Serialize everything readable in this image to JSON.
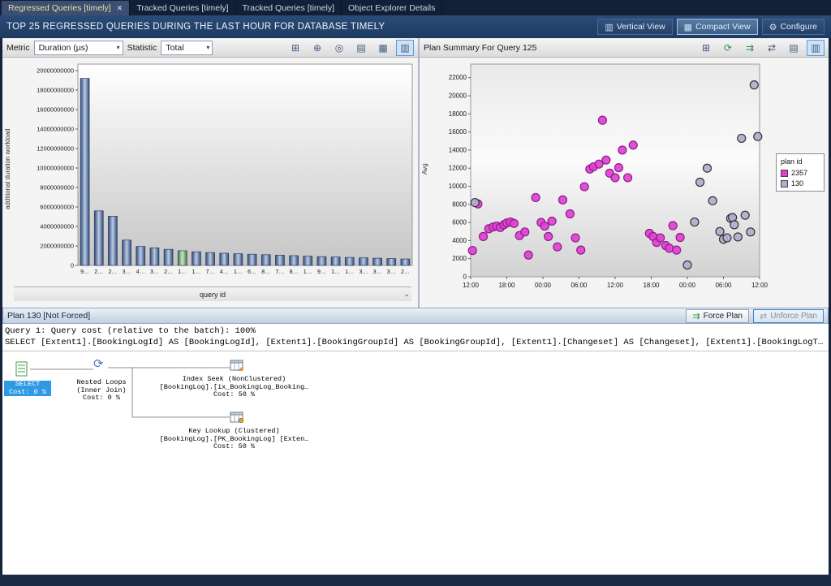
{
  "tabs": [
    {
      "label": "Regressed Queries [timely]",
      "active": true
    },
    {
      "label": "Tracked Queries [timely]",
      "active": false
    },
    {
      "label": "Tracked Queries [timely]",
      "active": false
    },
    {
      "label": "Object Explorer Details",
      "active": false
    }
  ],
  "title_bar": {
    "title": "TOP 25 REGRESSED QUERIES DURING THE LAST HOUR FOR DATABASE TIMELY",
    "vertical_view": "Vertical View",
    "compact_view": "Compact View",
    "configure": "Configure"
  },
  "left_toolbar": {
    "metric_label": "Metric",
    "metric_value": "Duration (µs)",
    "statistic_label": "Statistic",
    "statistic_value": "Total"
  },
  "right_header": {
    "title": "Plan Summary For Query 125"
  },
  "plan_panel": {
    "title": "Plan 130 [Not Forced]",
    "force_plan": "Force Plan",
    "unforce_plan": "Unforce Plan",
    "query_cost_line": "Query 1: Query cost (relative to the batch): 100%",
    "query_text": "SELECT [Extent1].[BookingLogId] AS [BookingLogId], [Extent1].[BookingGroupId] AS [BookingGroupId], [Extent1].[Changeset] AS [Changeset], [Extent1].[BookingLogT…",
    "nodes": {
      "select": {
        "label": "SELECT",
        "cost": "Cost: 0 %"
      },
      "nested_loops": {
        "line1": "Nested Loops",
        "line2": "(Inner Join)",
        "cost": "Cost: 0 %"
      },
      "index_seek": {
        "line1": "Index Seek (NonClustered)",
        "line2": "[BookingLog].[ix_BookingLog_Booking…",
        "cost": "Cost: 50 %"
      },
      "key_lookup": {
        "line1": "Key Lookup (Clustered)",
        "line2": "[BookingLog].[PK_BookingLog] [Exten…",
        "cost": "Cost: 50 %"
      }
    }
  },
  "icons": {
    "close": "✕",
    "dropdown_arrow": "▾",
    "chevron_down": "⌄",
    "vertical_view": "▥",
    "compact_view": "▦",
    "configure": "⚙",
    "force_plan": "⇉",
    "unforce_plan": "⇄",
    "left_toolbar": [
      {
        "name": "grid-view-icon",
        "glyph": "⊞"
      },
      {
        "name": "crosshair-icon",
        "glyph": "⊕"
      },
      {
        "name": "zoom-chart-icon",
        "glyph": "◎"
      },
      {
        "name": "chart-type-column-icon",
        "glyph": "▤"
      },
      {
        "name": "chart-type-grid-icon",
        "glyph": "▦"
      },
      {
        "name": "chart-type-bar-icon",
        "glyph": "▥"
      }
    ],
    "right_toolbar": [
      {
        "name": "grid-view-icon",
        "glyph": "⊞"
      },
      {
        "name": "refresh-icon",
        "glyph": "⟳"
      },
      {
        "name": "force-plan-icon",
        "glyph": "⇉"
      },
      {
        "name": "compare-plans-icon",
        "glyph": "⇄"
      },
      {
        "name": "plan-page-icon",
        "glyph": "▤"
      },
      {
        "name": "chart-view-icon",
        "glyph": "▥"
      }
    ]
  },
  "chart_data": [
    {
      "type": "bar",
      "xlabel": "query id",
      "ylabel": "additional duration workload",
      "ylim": [
        0,
        20000000000
      ],
      "ytick_step": 2000000000,
      "grid": false,
      "categories": [
        "9…",
        "2…",
        "2…",
        "3…",
        "4…",
        "3…",
        "2…",
        "1…",
        "1…",
        "7…",
        "4…",
        "1…",
        "6…",
        "8…",
        "7…",
        "8…",
        "1…",
        "9…",
        "1…",
        "1…",
        "3…",
        "3…",
        "3…",
        "2…"
      ],
      "values": [
        19200000000,
        5600000000,
        5050000000,
        2600000000,
        1950000000,
        1800000000,
        1650000000,
        1500000000,
        1400000000,
        1320000000,
        1250000000,
        1200000000,
        1150000000,
        1100000000,
        1050000000,
        1000000000,
        950000000,
        900000000,
        860000000,
        820000000,
        780000000,
        740000000,
        700000000,
        660000000
      ],
      "highlighted_index": 7,
      "bar_color": "#4a6a9c",
      "highlight_color": "#7aa86e"
    },
    {
      "type": "scatter",
      "ylabel": "Avg",
      "ylim": [
        0,
        23500
      ],
      "ytick_max": 22000,
      "ytick_step": 2000,
      "x_ticks": [
        "12:00",
        "18:00",
        "00:00",
        "06:00",
        "12:00",
        "18:00",
        "00:00",
        "06:00",
        "12:00"
      ],
      "x_range": [
        0,
        8
      ],
      "legend_title": "plan id",
      "legend_position": "right",
      "series": [
        {
          "name": "2357",
          "color": "#df3fd2",
          "stroke": "#8a1f86",
          "points": [
            [
              0.05,
              2900
            ],
            [
              0.2,
              8050
            ],
            [
              0.35,
              4450
            ],
            [
              0.5,
              5300
            ],
            [
              0.62,
              5500
            ],
            [
              0.72,
              5600
            ],
            [
              0.82,
              5450
            ],
            [
              0.92,
              5750
            ],
            [
              1.0,
              5950
            ],
            [
              1.1,
              6050
            ],
            [
              1.2,
              5900
            ],
            [
              1.35,
              4550
            ],
            [
              1.5,
              4950
            ],
            [
              1.6,
              2400
            ],
            [
              1.8,
              8750
            ],
            [
              1.95,
              6000
            ],
            [
              2.05,
              5600
            ],
            [
              2.15,
              4450
            ],
            [
              2.25,
              6150
            ],
            [
              2.4,
              3300
            ],
            [
              2.55,
              8500
            ],
            [
              2.75,
              6950
            ],
            [
              2.9,
              4300
            ],
            [
              3.05,
              2950
            ],
            [
              3.15,
              9950
            ],
            [
              3.3,
              11900
            ],
            [
              3.4,
              12150
            ],
            [
              3.55,
              12450
            ],
            [
              3.65,
              17300
            ],
            [
              3.75,
              12900
            ],
            [
              3.85,
              11450
            ],
            [
              4.0,
              10950
            ],
            [
              4.1,
              12050
            ],
            [
              4.2,
              14000
            ],
            [
              4.35,
              10950
            ],
            [
              4.5,
              14550
            ],
            [
              4.95,
              4800
            ],
            [
              5.05,
              4450
            ],
            [
              5.15,
              3800
            ],
            [
              5.25,
              4300
            ],
            [
              5.4,
              3450
            ],
            [
              5.5,
              3150
            ],
            [
              5.6,
              5650
            ],
            [
              5.7,
              2950
            ],
            [
              5.8,
              4350
            ]
          ]
        },
        {
          "name": "130",
          "color": "#b5abce",
          "stroke": "#333333",
          "points": [
            [
              0.12,
              8200
            ],
            [
              6.0,
              1300
            ],
            [
              6.2,
              6050
            ],
            [
              6.35,
              10450
            ],
            [
              6.55,
              12000
            ],
            [
              6.7,
              8400
            ],
            [
              6.9,
              5000
            ],
            [
              7.0,
              4150
            ],
            [
              7.1,
              4300
            ],
            [
              7.2,
              6450
            ],
            [
              7.25,
              6550
            ],
            [
              7.3,
              5750
            ],
            [
              7.4,
              4400
            ],
            [
              7.5,
              15300
            ],
            [
              7.6,
              6800
            ],
            [
              7.75,
              4950
            ],
            [
              7.85,
              21200
            ],
            [
              7.95,
              15500
            ]
          ]
        }
      ]
    }
  ]
}
